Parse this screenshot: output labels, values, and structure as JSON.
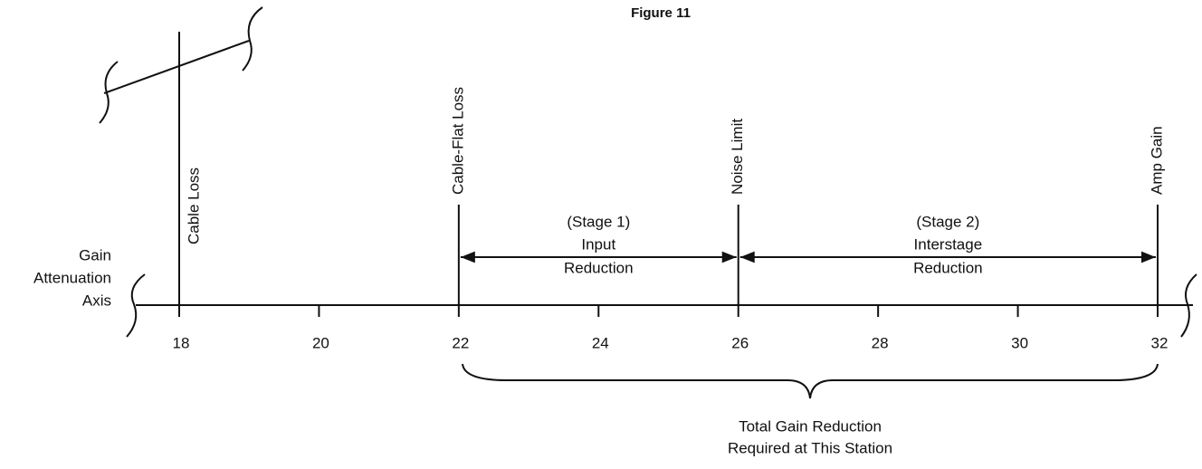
{
  "title": "Figure 11",
  "axis": {
    "label": [
      "Gain",
      "Attenuation",
      "Axis"
    ],
    "ticks": [
      18,
      20,
      22,
      24,
      26,
      28,
      30,
      32
    ]
  },
  "markers": [
    "Cable Loss",
    "Cable-Flat Loss",
    "Noise Limit",
    "Amp Gain"
  ],
  "stages": [
    [
      "(Stage 1)",
      "Input",
      "Reduction"
    ],
    [
      "(Stage 2)",
      "Interstage",
      "Reduction"
    ]
  ],
  "total": [
    "Total Gain Reduction",
    "Required at This Station"
  ]
}
